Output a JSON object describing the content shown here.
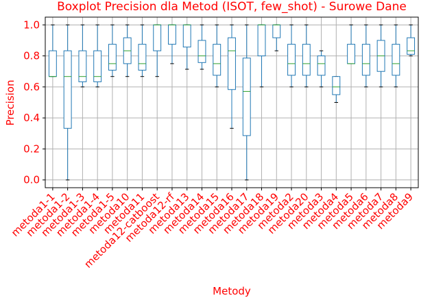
{
  "chart_data": {
    "type": "boxplot",
    "title": "Boxplot Precision dla Metod (ISOT, few_shot) - Surowe Dane",
    "xlabel": "Metody",
    "ylabel": "Precision",
    "ylim": [
      -0.05,
      1.05
    ],
    "yticks": [
      0.0,
      0.2,
      0.4,
      0.6,
      0.8,
      1.0
    ],
    "grid": true,
    "colors": {
      "text": "#ff0000",
      "box": "#1f77b4",
      "median": "#2ca02c",
      "grid": "#b0b0b0",
      "axis": "#000000"
    },
    "categories": [
      "metoda1-1",
      "metoda1-2",
      "metoda1-3",
      "metoda1-4",
      "metoda1-5",
      "metoda10",
      "metoda11",
      "metoda12-catboost",
      "metoda12-rf",
      "metoda13",
      "metoda14",
      "metoda15",
      "metoda16",
      "metoda17",
      "metoda18",
      "metoda19",
      "metoda2",
      "metoda20",
      "metoda3",
      "metoda4",
      "metoda5",
      "metoda6",
      "metoda7",
      "metoda8",
      "metoda9"
    ],
    "boxes": [
      {
        "whislo": 0.667,
        "q1": 0.667,
        "med": 0.667,
        "q3": 0.833,
        "whishi": 1.0
      },
      {
        "whislo": 0.0,
        "q1": 0.333,
        "med": 0.667,
        "q3": 0.833,
        "whishi": 1.0
      },
      {
        "whislo": 0.6,
        "q1": 0.633,
        "med": 0.667,
        "q3": 0.833,
        "whishi": 1.0
      },
      {
        "whislo": 0.6,
        "q1": 0.633,
        "med": 0.667,
        "q3": 0.833,
        "whishi": 1.0
      },
      {
        "whislo": 0.667,
        "q1": 0.708,
        "med": 0.75,
        "q3": 0.875,
        "whishi": 1.0
      },
      {
        "whislo": 0.667,
        "q1": 0.75,
        "med": 0.833,
        "q3": 0.917,
        "whishi": 1.0
      },
      {
        "whislo": 0.667,
        "q1": 0.708,
        "med": 0.75,
        "q3": 0.875,
        "whishi": 1.0
      },
      {
        "whislo": 0.667,
        "q1": 0.833,
        "med": 1.0,
        "q3": 1.0,
        "whishi": 1.0
      },
      {
        "whislo": 0.75,
        "q1": 0.875,
        "med": 1.0,
        "q3": 1.0,
        "whishi": 1.0
      },
      {
        "whislo": 0.714,
        "q1": 0.857,
        "med": 1.0,
        "q3": 1.0,
        "whishi": 1.0
      },
      {
        "whislo": 0.714,
        "q1": 0.757,
        "med": 0.8,
        "q3": 0.9,
        "whishi": 1.0
      },
      {
        "whislo": 0.6,
        "q1": 0.675,
        "med": 0.75,
        "q3": 0.875,
        "whishi": 1.0
      },
      {
        "whislo": 0.333,
        "q1": 0.583,
        "med": 0.833,
        "q3": 0.917,
        "whishi": 1.0
      },
      {
        "whislo": 0.0,
        "q1": 0.286,
        "med": 0.571,
        "q3": 0.786,
        "whishi": 1.0
      },
      {
        "whislo": 0.6,
        "q1": 0.8,
        "med": 1.0,
        "q3": 1.0,
        "whishi": 1.0
      },
      {
        "whislo": 0.833,
        "q1": 0.917,
        "med": 1.0,
        "q3": 1.0,
        "whishi": 1.0
      },
      {
        "whislo": 0.6,
        "q1": 0.675,
        "med": 0.75,
        "q3": 0.875,
        "whishi": 1.0
      },
      {
        "whislo": 0.6,
        "q1": 0.675,
        "med": 0.75,
        "q3": 0.875,
        "whishi": 1.0
      },
      {
        "whislo": 0.6,
        "q1": 0.675,
        "med": 0.75,
        "q3": 0.8,
        "whishi": 0.833
      },
      {
        "whislo": 0.5,
        "q1": 0.55,
        "med": 0.6,
        "q3": 0.667,
        "whishi": 0.667
      },
      {
        "whislo": 0.75,
        "q1": 0.75,
        "med": 0.75,
        "q3": 0.875,
        "whishi": 1.0
      },
      {
        "whislo": 0.6,
        "q1": 0.675,
        "med": 0.75,
        "q3": 0.875,
        "whishi": 1.0
      },
      {
        "whislo": 0.6,
        "q1": 0.7,
        "med": 0.8,
        "q3": 0.9,
        "whishi": 1.0
      },
      {
        "whislo": 0.6,
        "q1": 0.675,
        "med": 0.75,
        "q3": 0.875,
        "whishi": 1.0
      },
      {
        "whislo": 0.8,
        "q1": 0.81,
        "med": 0.833,
        "q3": 0.917,
        "whishi": 1.0
      }
    ]
  }
}
